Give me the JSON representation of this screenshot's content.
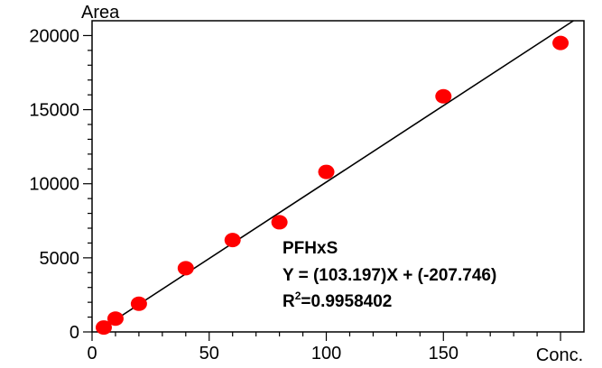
{
  "chart_data": {
    "type": "scatter",
    "title": "",
    "xlabel": "Conc.",
    "ylabel": "Area",
    "xlim": [
      0,
      210
    ],
    "ylim": [
      0,
      21000
    ],
    "x_ticks": [
      0,
      50,
      100,
      150
    ],
    "y_ticks": [
      0,
      5000,
      10000,
      15000,
      20000
    ],
    "x_tick_labels": [
      "0",
      "50",
      "100",
      "150"
    ],
    "y_tick_labels": [
      "0",
      "5000",
      "10000",
      "15000",
      "20000"
    ],
    "grid": false,
    "legend": "none",
    "series": [
      {
        "x": [
          5,
          10,
          20,
          40,
          60,
          80,
          100,
          150,
          200
        ],
        "y": [
          300,
          900,
          1900,
          4300,
          6200,
          7400,
          10800,
          15900,
          19500
        ],
        "color": "#ff0000"
      }
    ],
    "fit_line": {
      "slope": 103.197,
      "intercept": -207.746,
      "color": "#000000"
    },
    "annotation": {
      "compound": "PFHxS",
      "equation": "Y = (103.197)X + (-207.746)",
      "r2_prefix": "R",
      "r2_sup": "2",
      "r2_value": "=0.9958402"
    }
  }
}
